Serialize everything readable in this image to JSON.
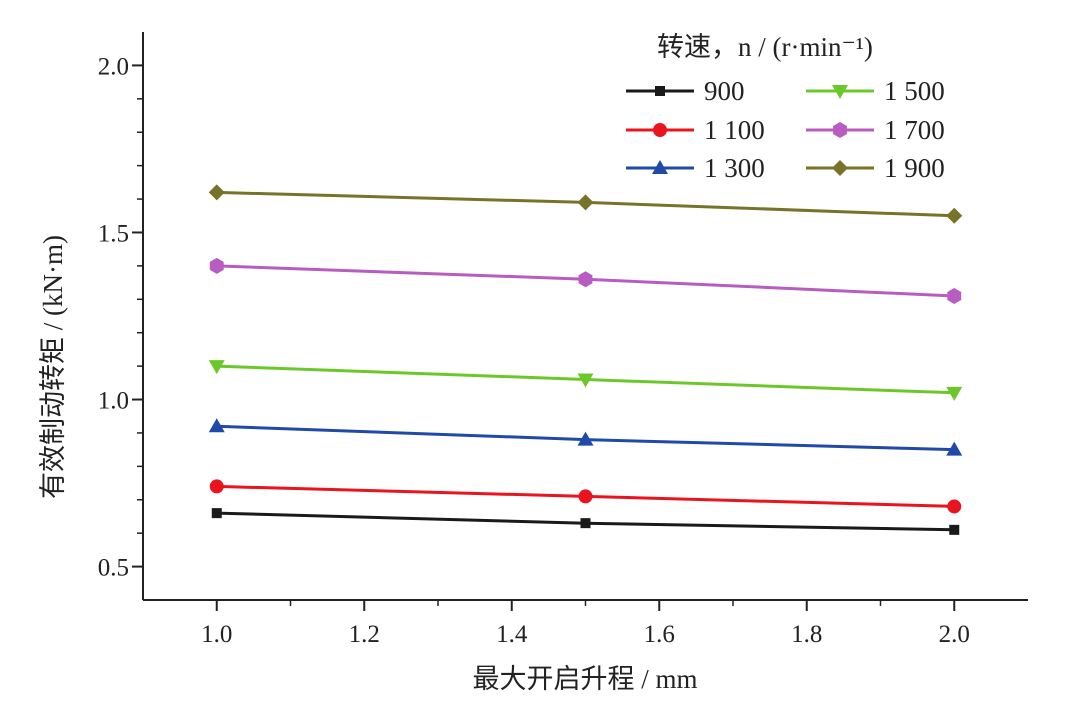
{
  "chart_data": {
    "type": "line",
    "xlabel": "最大开启升程 / mm",
    "ylabel": "有效制动转矩 / (kN·m)",
    "xlim": [
      0.9,
      2.1
    ],
    "ylim": [
      0.4,
      2.1
    ],
    "x_ticks": [
      1.0,
      1.2,
      1.4,
      1.6,
      1.8,
      2.0
    ],
    "x_tick_labels": [
      "1.0",
      "1.2",
      "1.4",
      "1.6",
      "1.8",
      "2.0"
    ],
    "y_ticks": [
      0.5,
      1.0,
      1.5,
      2.0
    ],
    "y_tick_labels": [
      "0.5",
      "1.0",
      "1.5",
      "2.0"
    ],
    "grid": false,
    "legend": {
      "title": "转速，n / (r·min⁻¹)",
      "placement": "top-right",
      "columns": 2
    },
    "x": [
      1.0,
      1.5,
      2.0
    ],
    "series": [
      {
        "name": "900",
        "values": [
          0.66,
          0.63,
          0.61
        ],
        "color": "#1a1a1a",
        "marker": "square"
      },
      {
        "name": "1 100",
        "values": [
          0.74,
          0.71,
          0.68
        ],
        "color": "#e8141e",
        "marker": "circle"
      },
      {
        "name": "1 300",
        "values": [
          0.92,
          0.88,
          0.85
        ],
        "color": "#1f4aa8",
        "marker": "triangle-up"
      },
      {
        "name": "1 500",
        "values": [
          1.1,
          1.06,
          1.02
        ],
        "color": "#6cc82a",
        "marker": "triangle-down"
      },
      {
        "name": "1 700",
        "values": [
          1.4,
          1.36,
          1.31
        ],
        "color": "#b85cc2",
        "marker": "hexagon"
      },
      {
        "name": "1 900",
        "values": [
          1.62,
          1.59,
          1.55
        ],
        "color": "#77742a",
        "marker": "diamond"
      }
    ]
  }
}
